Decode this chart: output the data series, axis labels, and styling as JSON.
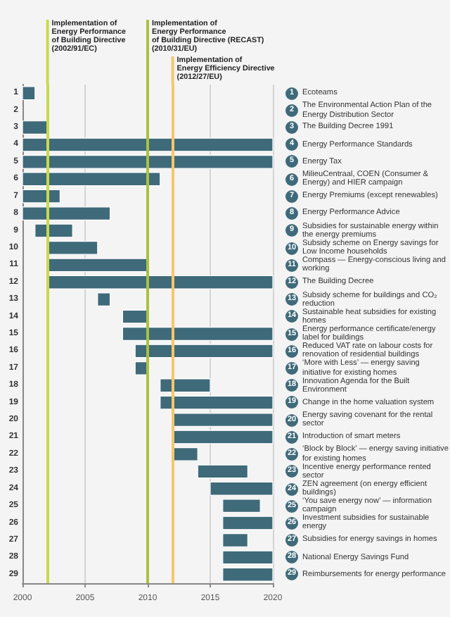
{
  "chart_data": {
    "type": "bar",
    "orientation": "horizontal",
    "categories": [
      "1",
      "2",
      "3",
      "4",
      "5",
      "6",
      "7",
      "8",
      "9",
      "10",
      "11",
      "12",
      "13",
      "14",
      "15",
      "16",
      "17",
      "18",
      "19",
      "20",
      "21",
      "22",
      "23",
      "24",
      "25",
      "26",
      "27",
      "28",
      "29"
    ],
    "base": [
      2000,
      null,
      2000,
      2000,
      2000,
      2000,
      2000,
      2000,
      2001,
      2002,
      2002,
      2002,
      2006,
      2008,
      2008,
      2009,
      2009,
      2011,
      2011,
      2012,
      2012,
      2012,
      2014,
      2015,
      2016,
      2016,
      2016,
      2016,
      2016
    ],
    "values": [
      1,
      null,
      2,
      20,
      20,
      11,
      3,
      7,
      3,
      4,
      8,
      18,
      1,
      2,
      12,
      11,
      1,
      4,
      9,
      8,
      8,
      2,
      4,
      5,
      3,
      4,
      2,
      4,
      4
    ],
    "color": "#3f6a7a",
    "xlim": [
      2000,
      2020
    ],
    "xticks": [
      2000,
      2005,
      2010,
      2015,
      2020
    ],
    "grid": "x",
    "ref_lines": [
      {
        "axis": "x",
        "value": 2002,
        "label": "Implementation of\nEnergy Performance\nof Building Directive\n(2002/91/EC)",
        "color": "#c9d94c"
      },
      {
        "axis": "x",
        "value": 2010,
        "label": "Implementation of\nEnergy Performance\nof Building Directive (RECAST)\n(2010/31/EU)",
        "color": "#a9c23e"
      },
      {
        "axis": "x",
        "value": 2012,
        "label": "Implementation of\nEnergy Efficiency Directive\n(2012/27/EU)",
        "color": "#f6c66a"
      }
    ],
    "annotations": [
      "Ecoteams",
      "The Environmental Action Plan of the Energy Distribution Sector",
      "The Building Decree 1991",
      "Energy Performance Standards",
      "Energy Tax",
      "MilieuCentraal, COEN (Consumer & Energy) and HIER campaign",
      "Energy Premiums (except renewables)",
      "Energy Performance Advice",
      "Subsidies for sustainable energy within the energy premiums",
      "Subsidy scheme on Energy savings for Low Income households",
      "Compass — Energy-conscious living and working",
      "The Building Decree",
      "Subsidy scheme for buildings and CO₂ reduction",
      "Sustainable heat subsidies for existing homes",
      "Energy performance certificate/energy label for buildings",
      "Reduced VAT rate on labour costs for renovation of residential buildings",
      "‘More with Less’ — energy saving initiative for existing homes",
      "Innovation Agenda for the Built Environment",
      "Change in the home valuation system",
      "Energy saving covenant for the rental sector",
      "Introduction of smart meters",
      "‘Block by Block’ — energy saving initiative for existing homes",
      "Incentive energy performance rented sector",
      "ZEN agreement (on energy efficient buildings)",
      "‘You save energy now’ — information campaign",
      "Investment subsidies for sustainable energy",
      "Subsidies for energy savings in homes",
      "National Energy Savings Fund",
      "Reimbursements for energy performance"
    ]
  }
}
